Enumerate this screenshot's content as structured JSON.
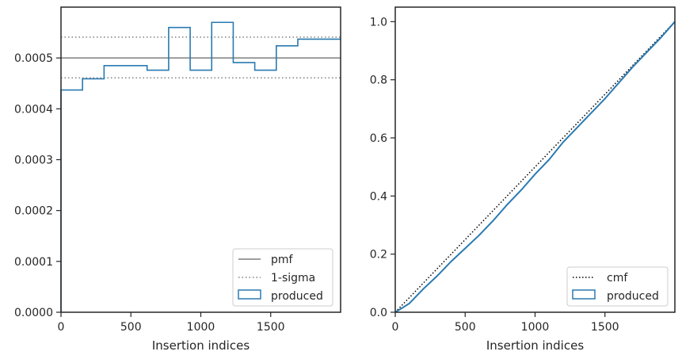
{
  "colors": {
    "hist": "#2a7ab0",
    "pmf": "#7f7f7f",
    "sigma": "#7f7f7f",
    "cmf": "#000000",
    "frame": "#262626",
    "legend_border": "#cccccc"
  },
  "chart_data": [
    {
      "type": "histogram",
      "xlabel": "Insertion indices",
      "ylabel": "",
      "xlim": [
        0,
        2000
      ],
      "ylim": [
        0,
        0.0006
      ],
      "xticks": [
        0,
        500,
        1000,
        1500
      ],
      "yticks": [
        0,
        0.0001,
        0.0002,
        0.0003,
        0.0004,
        0.0005
      ],
      "ytick_labels": [
        "0.0000",
        "0.0001",
        "0.0002",
        "0.0003",
        "0.0004",
        "0.0005"
      ],
      "bin_edges": [
        0,
        154,
        308,
        462,
        616,
        770,
        924,
        1078,
        1232,
        1386,
        1540,
        1694,
        1848,
        2000
      ],
      "values": [
        0.000437,
        0.000459,
        0.000485,
        0.000485,
        0.000476,
        0.00056,
        0.000476,
        0.00057,
        0.000491,
        0.000476,
        0.000524,
        0.000537,
        0.000537
      ],
      "hlines": [
        {
          "name": "pmf",
          "y": 0.0005,
          "style": "solid"
        },
        {
          "name": "1-sigma",
          "y": 0.000541,
          "style": "dotted"
        },
        {
          "name": "1-sigma",
          "y": 0.000461,
          "style": "dotted"
        }
      ],
      "legend": {
        "placement": "lower right",
        "entries": [
          "pmf",
          "1-sigma",
          "produced"
        ]
      }
    },
    {
      "type": "line",
      "xlabel": "Insertion indices",
      "ylabel": "",
      "xlim": [
        0,
        2000
      ],
      "ylim": [
        0,
        1.05
      ],
      "xticks": [
        0,
        500,
        1000,
        1500
      ],
      "yticks": [
        0.0,
        0.2,
        0.4,
        0.6,
        0.8,
        1.0
      ],
      "ytick_labels": [
        "0.0",
        "0.2",
        "0.4",
        "0.6",
        "0.8",
        "1.0"
      ],
      "series": [
        {
          "name": "cmf",
          "style": "dotted",
          "x": [
            0,
            2000
          ],
          "y": [
            0,
            1.0
          ]
        },
        {
          "name": "produced",
          "style": "solid",
          "x": [
            0,
            100,
            200,
            300,
            400,
            500,
            600,
            700,
            800,
            900,
            1000,
            1100,
            1200,
            1300,
            1400,
            1500,
            1600,
            1700,
            1800,
            1900,
            2000
          ],
          "y": [
            0,
            0.03,
            0.08,
            0.125,
            0.175,
            0.22,
            0.265,
            0.315,
            0.37,
            0.42,
            0.475,
            0.525,
            0.585,
            0.635,
            0.685,
            0.735,
            0.79,
            0.845,
            0.895,
            0.945,
            1.0
          ]
        }
      ],
      "legend": {
        "placement": "lower right",
        "entries": [
          "cmf",
          "produced"
        ]
      }
    }
  ]
}
